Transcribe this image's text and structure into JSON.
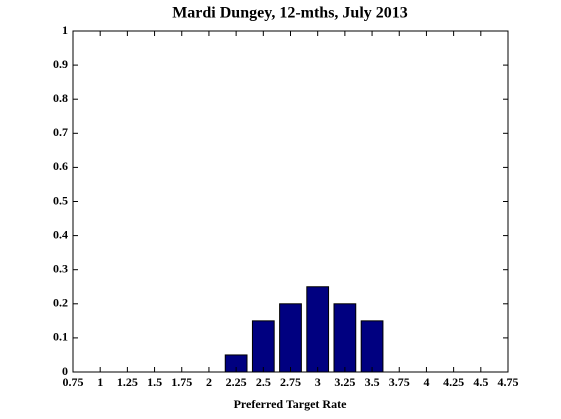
{
  "chart_data": {
    "type": "bar",
    "title": "Mardi Dungey, 12-mths, July 2013",
    "x_label": "Preferred Target Rate",
    "x": [
      2.25,
      2.5,
      2.75,
      3,
      3.25,
      3.5
    ],
    "values": [
      0.05,
      0.15,
      0.2,
      0.25,
      0.2,
      0.15
    ],
    "color": "#000080",
    "xlim": [
      0.75,
      4.75
    ],
    "xticks": [
      0.75,
      1,
      1.25,
      1.5,
      1.75,
      2,
      2.25,
      2.5,
      2.75,
      3,
      3.25,
      3.5,
      3.75,
      4,
      4.25,
      4.5,
      4.75
    ],
    "ylim": [
      0,
      1
    ],
    "yticks": [
      0,
      0.1,
      0.2,
      0.3,
      0.4,
      0.5,
      0.6,
      0.7,
      0.8,
      0.9,
      1
    ]
  }
}
